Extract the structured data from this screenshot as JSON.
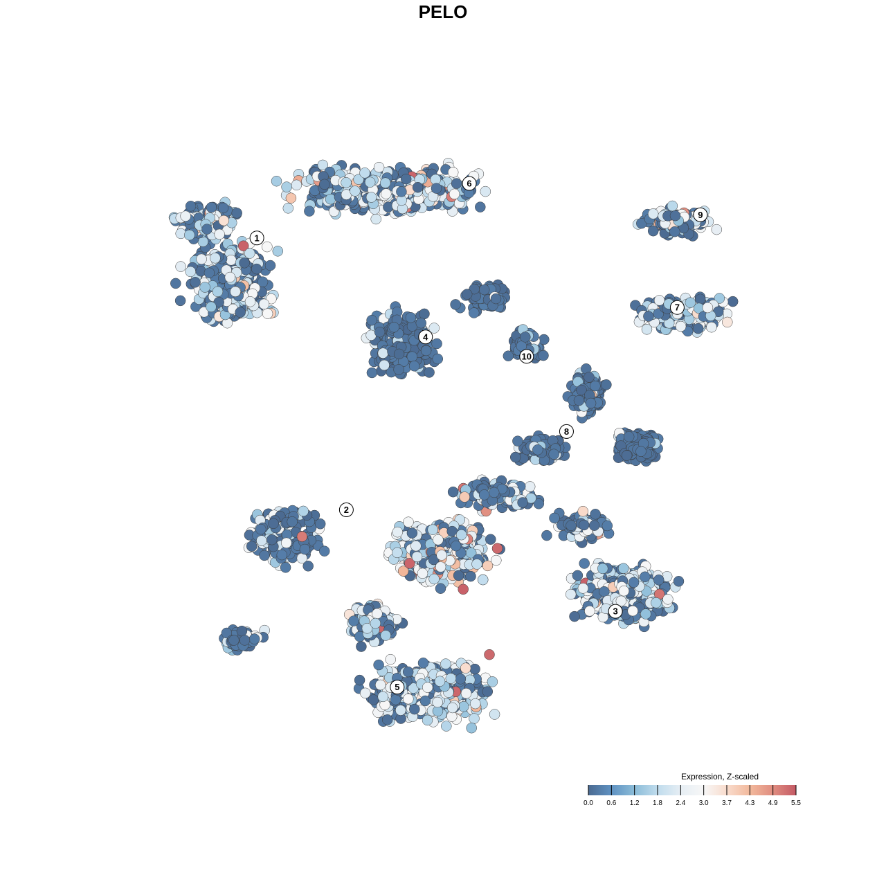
{
  "chart_data": {
    "type": "scatter",
    "title": "PELO",
    "xlabel": "",
    "ylabel": "",
    "grid": false,
    "cluster_labels": [
      {
        "label": "1",
        "x": -31.6,
        "y": 32.4
      },
      {
        "label": "2",
        "x": -17.7,
        "y": -11.0
      },
      {
        "label": "3",
        "x": 24.1,
        "y": -27.2
      },
      {
        "label": "4",
        "x": -5.4,
        "y": 16.6
      },
      {
        "label": "5",
        "x": -9.8,
        "y": -39.3
      },
      {
        "label": "6",
        "x": 1.4,
        "y": 41.1
      },
      {
        "label": "7",
        "x": 33.7,
        "y": 21.3
      },
      {
        "label": "8",
        "x": 16.5,
        "y": 1.5
      },
      {
        "label": "9",
        "x": 37.3,
        "y": 36.1
      },
      {
        "label": "10",
        "x": 10.3,
        "y": 13.5
      }
    ],
    "legend": {
      "title": "Expression, Z-scaled",
      "placement": "bottom-right",
      "ticks": [
        "0.0",
        "0.6",
        "1.2",
        "1.8",
        "2.4",
        "3.0",
        "3.7",
        "4.3",
        "4.9",
        "5.5"
      ],
      "range": [
        0.0,
        5.5
      ],
      "colors": [
        "#4b6a91",
        "#5f92c2",
        "#8bbcd8",
        "#c0dced",
        "#e6eef4",
        "#f7f7f7",
        "#f9dccd",
        "#f2b99c",
        "#e08d80",
        "#c45a65"
      ]
    }
  }
}
